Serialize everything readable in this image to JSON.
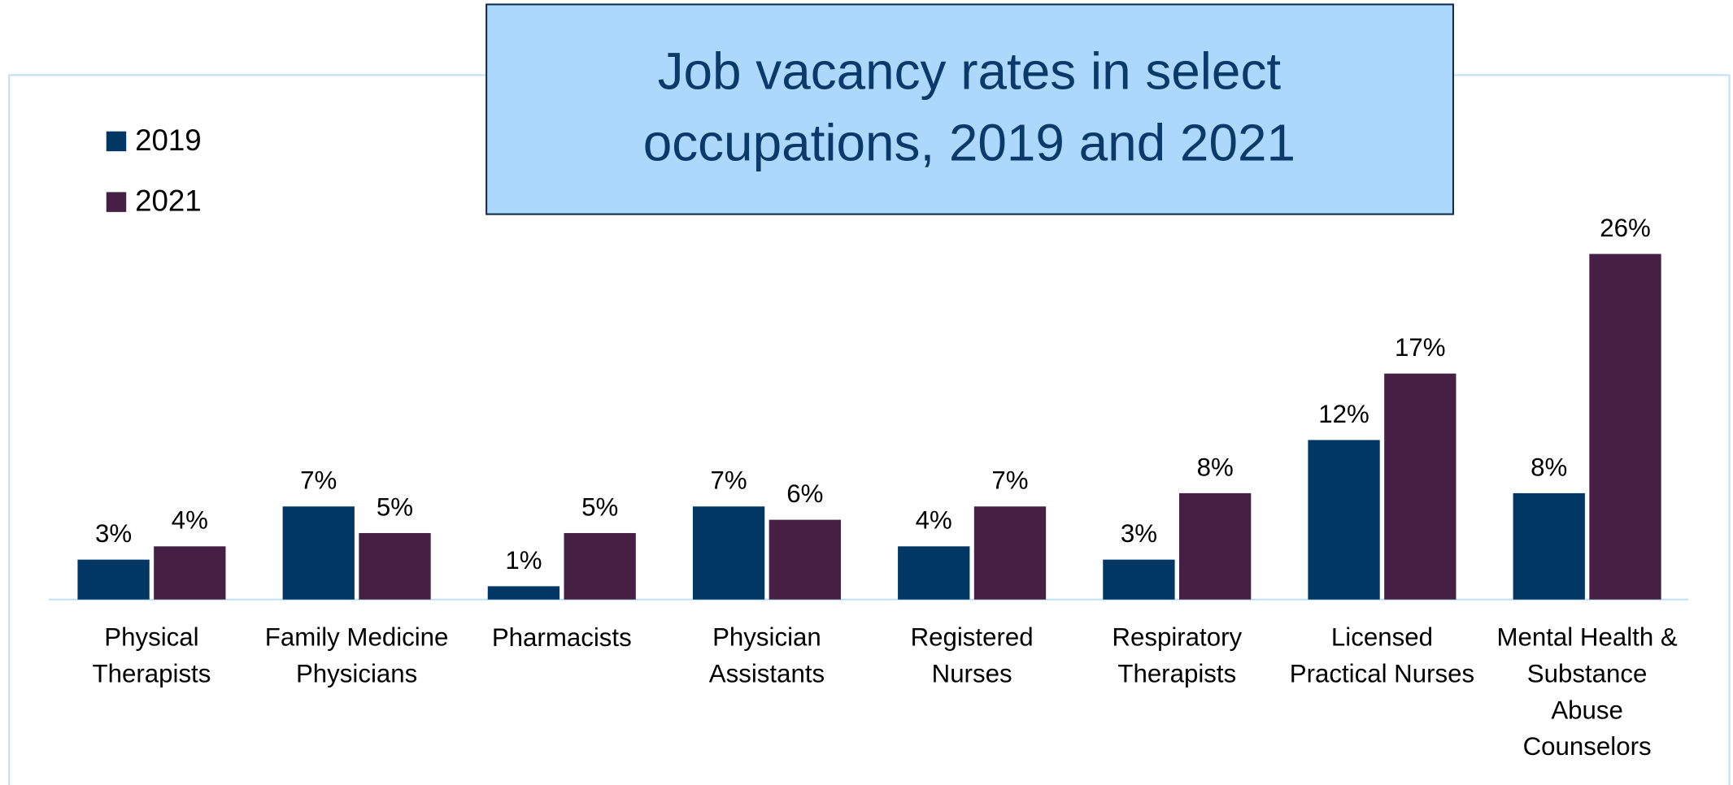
{
  "chart_data": {
    "type": "bar",
    "title": "Job vacancy rates in select\noccupations, 2019 and 2021",
    "categories": [
      "Physical\nTherapists",
      "Family Medicine\nPhysicians",
      "Pharmacists",
      "Physician\nAssistants",
      "Registered\nNurses",
      "Respiratory\nTherapists",
      "Licensed\nPractical Nurses",
      "Mental Health &\nSubstance\nAbuse\nCounselors"
    ],
    "series": [
      {
        "name": "2019",
        "color": "#003764",
        "values": [
          3,
          7,
          1,
          7,
          4,
          3,
          12,
          8
        ],
        "value_labels": [
          "3%",
          "7%",
          "1%",
          "7%",
          "4%",
          "3%",
          "12%",
          "8%"
        ]
      },
      {
        "name": "2021",
        "color": "#461f45",
        "values": [
          4,
          5,
          5,
          6,
          7,
          8,
          17,
          26
        ],
        "value_labels": [
          "4%",
          "5%",
          "5%",
          "6%",
          "7%",
          "8%",
          "17%",
          "26%"
        ]
      }
    ],
    "legend": "upper left"
  }
}
